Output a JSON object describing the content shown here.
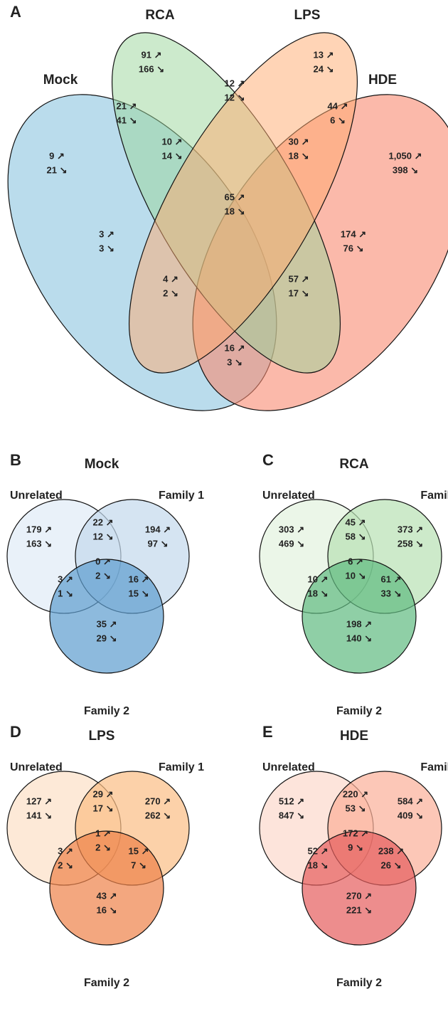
{
  "panel_a": {
    "label": "A",
    "sets": [
      "Mock",
      "RCA",
      "LPS",
      "HDE"
    ],
    "regions": [
      {
        "up": "91 ↗",
        "down": "166 ↘"
      },
      {
        "up": "13 ↗",
        "down": "24 ↘"
      },
      {
        "up": "12 ↗",
        "down": "12 ↘"
      },
      {
        "up": "21 ↗",
        "down": "41 ↘"
      },
      {
        "up": "44 ↗",
        "down": "6 ↘"
      },
      {
        "up": "9 ↗",
        "down": "21 ↘"
      },
      {
        "up": "10 ↗",
        "down": "14 ↘"
      },
      {
        "up": "30 ↗",
        "down": "18 ↘"
      },
      {
        "up": "1,050 ↗",
        "down": "398 ↘"
      },
      {
        "up": "65 ↗",
        "down": "18 ↘"
      },
      {
        "up": "3 ↗",
        "down": "3 ↘"
      },
      {
        "up": "174 ↗",
        "down": "76 ↘"
      },
      {
        "up": "4 ↗",
        "down": "2 ↘"
      },
      {
        "up": "57 ↗",
        "down": "17 ↘"
      },
      {
        "up": "16 ↗",
        "down": "3 ↘"
      }
    ]
  },
  "panels": [
    {
      "label": "B",
      "title": "Mock",
      "sets": [
        "Unrelated",
        "Family 1",
        "Family 2"
      ],
      "regions": [
        {
          "up": "179 ↗",
          "down": "163 ↘"
        },
        {
          "up": "22 ↗",
          "down": "12 ↘"
        },
        {
          "up": "194 ↗",
          "down": "97 ↘"
        },
        {
          "up": "0 ↗",
          "down": "2 ↘"
        },
        {
          "up": "3 ↗",
          "down": "1 ↘"
        },
        {
          "up": "16 ↗",
          "down": "15 ↘"
        },
        {
          "up": "35 ↗",
          "down": "29 ↘"
        }
      ]
    },
    {
      "label": "C",
      "title": "RCA",
      "sets": [
        "Unrelated",
        "Family",
        "Family 2"
      ],
      "regions": [
        {
          "up": "303 ↗",
          "down": "469 ↘"
        },
        {
          "up": "45 ↗",
          "down": "58 ↘"
        },
        {
          "up": "373 ↗",
          "down": "258 ↘"
        },
        {
          "up": "6 ↗",
          "down": "10 ↘"
        },
        {
          "up": "10 ↗",
          "down": "18 ↘"
        },
        {
          "up": "61 ↗",
          "down": "33 ↘"
        },
        {
          "up": "198 ↗",
          "down": "140 ↘"
        }
      ]
    },
    {
      "label": "D",
      "title": "LPS",
      "sets": [
        "Unrelated",
        "Family 1",
        "Family 2"
      ],
      "regions": [
        {
          "up": "127 ↗",
          "down": "141 ↘"
        },
        {
          "up": "29 ↗",
          "down": "17 ↘"
        },
        {
          "up": "270 ↗",
          "down": "262 ↘"
        },
        {
          "up": "1 ↗",
          "down": "2 ↘"
        },
        {
          "up": "3 ↗",
          "down": "2 ↘"
        },
        {
          "up": "15 ↗",
          "down": "7 ↘"
        },
        {
          "up": "43 ↗",
          "down": "16 ↘"
        }
      ]
    },
    {
      "label": "E",
      "title": "HDE",
      "sets": [
        "Unrelated",
        "Family",
        "Family 2"
      ],
      "regions": [
        {
          "up": "512 ↗",
          "down": "847 ↘"
        },
        {
          "up": "220 ↗",
          "down": "53 ↘"
        },
        {
          "up": "584 ↗",
          "down": "409 ↘"
        },
        {
          "up": "172 ↗",
          "down": "9 ↘"
        },
        {
          "up": "52 ↗",
          "down": "18 ↘"
        },
        {
          "up": "238 ↗",
          "down": "26 ↘"
        },
        {
          "up": "270 ↗",
          "down": "221 ↘"
        }
      ]
    }
  ]
}
